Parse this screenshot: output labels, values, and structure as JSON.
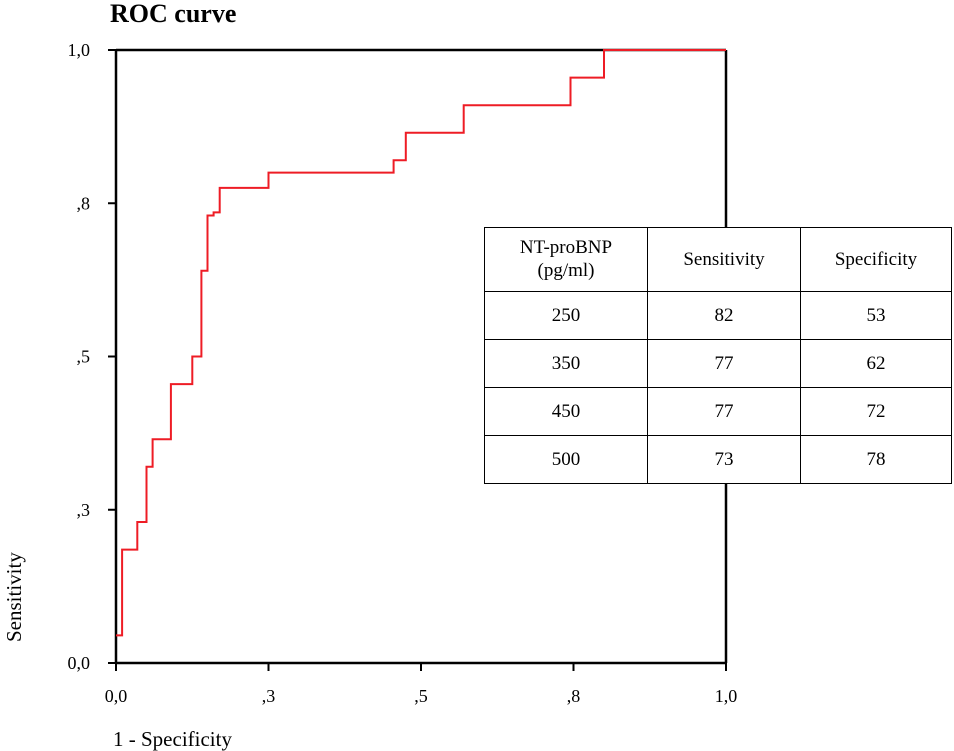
{
  "chart_data": {
    "type": "line",
    "title": "ROC curve",
    "xlabel": "1 - Specificity",
    "ylabel": "Sensitivity",
    "xlim": [
      0,
      1
    ],
    "ylim": [
      0,
      1
    ],
    "x_ticks": [
      {
        "value": 0.0,
        "label": "0,0"
      },
      {
        "value": 0.25,
        "label": ",3"
      },
      {
        "value": 0.5,
        "label": ",5"
      },
      {
        "value": 0.75,
        "label": ",8"
      },
      {
        "value": 1.0,
        "label": "1,0"
      }
    ],
    "y_ticks": [
      {
        "value": 0.0,
        "label": "0,0"
      },
      {
        "value": 0.25,
        "label": ",3"
      },
      {
        "value": 0.5,
        "label": ",5"
      },
      {
        "value": 0.75,
        "label": ",8"
      },
      {
        "value": 1.0,
        "label": "1,0"
      }
    ],
    "grid": false,
    "series": [
      {
        "color": "#ee1c25",
        "step": true,
        "x": [
          0.0,
          0.01,
          0.01,
          0.035,
          0.035,
          0.05,
          0.05,
          0.06,
          0.06,
          0.09,
          0.09,
          0.125,
          0.125,
          0.14,
          0.14,
          0.15,
          0.15,
          0.16,
          0.16,
          0.17,
          0.17,
          0.25,
          0.25,
          0.455,
          0.455,
          0.475,
          0.475,
          0.57,
          0.57,
          0.745,
          0.745,
          0.8,
          0.8,
          1.0
        ],
        "y": [
          0.045,
          0.045,
          0.185,
          0.185,
          0.23,
          0.23,
          0.32,
          0.32,
          0.365,
          0.365,
          0.455,
          0.455,
          0.5,
          0.5,
          0.64,
          0.64,
          0.73,
          0.73,
          0.735,
          0.735,
          0.775,
          0.775,
          0.8,
          0.8,
          0.82,
          0.82,
          0.865,
          0.865,
          0.91,
          0.91,
          0.955,
          0.955,
          1.0,
          1.0
        ]
      }
    ]
  },
  "table": {
    "headers": [
      "NT-proBNP (pg/ml)",
      "Sensitivity",
      "Specificity"
    ],
    "header_lines": [
      "NT-proBNP",
      "(pg/ml)"
    ],
    "rows": [
      [
        "250",
        "82",
        "53"
      ],
      [
        "350",
        "77",
        "62"
      ],
      [
        "450",
        "77",
        "72"
      ],
      [
        "500",
        "73",
        "78"
      ]
    ]
  }
}
